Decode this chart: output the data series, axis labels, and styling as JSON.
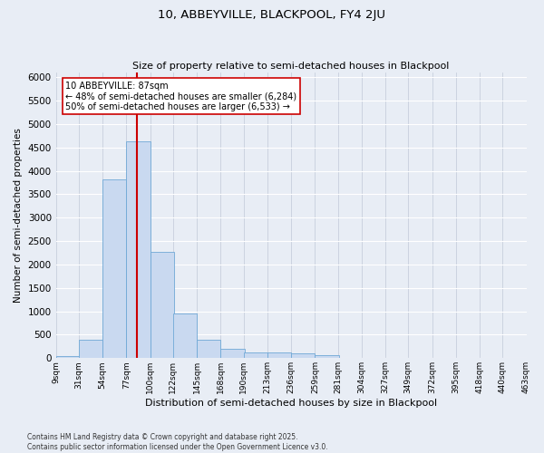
{
  "title": "10, ABBEYVILLE, BLACKPOOL, FY4 2JU",
  "subtitle": "Size of property relative to semi-detached houses in Blackpool",
  "xlabel": "Distribution of semi-detached houses by size in Blackpool",
  "ylabel": "Number of semi-detached properties",
  "footnote1": "Contains HM Land Registry data © Crown copyright and database right 2025.",
  "footnote2": "Contains public sector information licensed under the Open Government Licence v3.0.",
  "annotation_title": "10 ABBEYVILLE: 87sqm",
  "annotation_left": "← 48% of semi-detached houses are smaller (6,284)",
  "annotation_right": "50% of semi-detached houses are larger (6,533) →",
  "property_size": 87,
  "bar_left_edges": [
    9,
    31,
    54,
    77,
    100,
    122,
    145,
    168,
    190,
    213,
    236,
    259,
    281,
    304,
    327,
    349,
    372,
    395,
    418,
    440
  ],
  "bar_heights": [
    50,
    390,
    3820,
    4640,
    2270,
    960,
    390,
    200,
    130,
    115,
    95,
    60,
    10,
    5,
    5,
    5,
    5,
    5,
    5,
    5
  ],
  "bin_width": 23,
  "bar_color": "#c9d9f0",
  "bar_edge_color": "#6fa8d6",
  "redline_color": "#cc0000",
  "annotation_box_color": "#cc0000",
  "bg_color": "#e8edf5",
  "grid_color_x": "#c0c8d8",
  "grid_color_y": "#ffffff",
  "ylim": [
    0,
    6100
  ],
  "yticks": [
    0,
    500,
    1000,
    1500,
    2000,
    2500,
    3000,
    3500,
    4000,
    4500,
    5000,
    5500,
    6000
  ],
  "xtick_labels": [
    "9sqm",
    "31sqm",
    "54sqm",
    "77sqm",
    "100sqm",
    "122sqm",
    "145sqm",
    "168sqm",
    "190sqm",
    "213sqm",
    "236sqm",
    "259sqm",
    "281sqm",
    "304sqm",
    "327sqm",
    "349sqm",
    "372sqm",
    "395sqm",
    "418sqm",
    "440sqm",
    "463sqm"
  ],
  "xlim_left": 9,
  "xlim_right": 463
}
